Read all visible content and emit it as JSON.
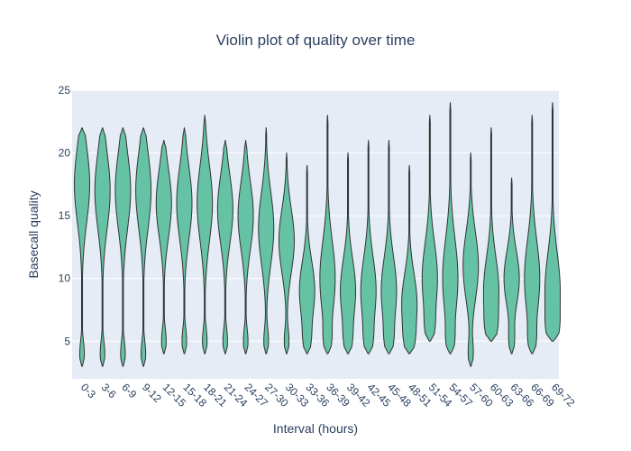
{
  "chart_data": {
    "type": "violin",
    "title": "Violin plot of quality over time",
    "xlabel": "Interval (hours)",
    "ylabel": "Basecall quality",
    "ylim": [
      2,
      25
    ],
    "yticks": [
      5,
      10,
      15,
      20,
      25
    ],
    "grid": true,
    "colors": {
      "fill": "#66c2a5",
      "line": "#333333",
      "plot_bg": "#e5ecf6",
      "text": "#2a3f5f"
    },
    "categories": [
      "0-3",
      "3-6",
      "6-9",
      "9-12",
      "12-15",
      "15-18",
      "18-21",
      "21-24",
      "24-27",
      "27-30",
      "30-33",
      "33-36",
      "36-39",
      "39-42",
      "42-45",
      "45-48",
      "48-51",
      "51-54",
      "54-57",
      "57-60",
      "60-63",
      "63-66",
      "66-69",
      "69-72"
    ],
    "series": [
      {
        "values": [
          {
            "min": 3,
            "max": 22,
            "mode": 17.5
          },
          {
            "min": 3,
            "max": 22,
            "mode": 17
          },
          {
            "min": 3,
            "max": 22,
            "mode": 17
          },
          {
            "min": 3,
            "max": 22,
            "mode": 17
          },
          {
            "min": 4,
            "max": 21,
            "mode": 16
          },
          {
            "min": 4,
            "max": 22,
            "mode": 16
          },
          {
            "min": 4,
            "max": 23,
            "mode": 16
          },
          {
            "min": 4,
            "max": 21,
            "mode": 15.5
          },
          {
            "min": 4,
            "max": 21,
            "mode": 15
          },
          {
            "min": 4,
            "max": 22,
            "mode": 14
          },
          {
            "min": 4,
            "max": 20,
            "mode": 13
          },
          {
            "min": 4,
            "max": 19,
            "mode": 9
          },
          {
            "min": 4,
            "max": 23,
            "mode": 10
          },
          {
            "min": 4,
            "max": 20,
            "mode": 9
          },
          {
            "min": 4,
            "max": 21,
            "mode": 9
          },
          {
            "min": 4,
            "max": 21,
            "mode": 9
          },
          {
            "min": 4,
            "max": 19,
            "mode": 8
          },
          {
            "min": 5,
            "max": 23,
            "mode": 10
          },
          {
            "min": 4,
            "max": 24,
            "mode": 10
          },
          {
            "min": 3,
            "max": 20,
            "mode": 11
          },
          {
            "min": 5,
            "max": 22,
            "mode": 9
          },
          {
            "min": 4,
            "max": 18,
            "mode": 10
          },
          {
            "min": 4,
            "max": 23,
            "mode": 10
          },
          {
            "min": 5,
            "max": 24,
            "mode": 9
          }
        ]
      }
    ]
  }
}
